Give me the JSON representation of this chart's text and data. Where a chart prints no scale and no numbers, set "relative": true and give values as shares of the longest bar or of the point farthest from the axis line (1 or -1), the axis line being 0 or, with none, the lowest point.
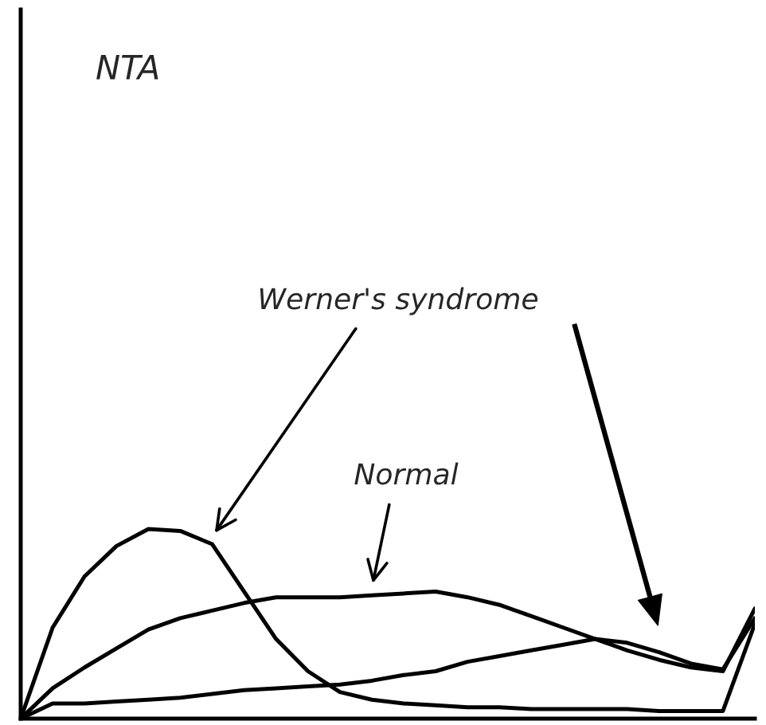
{
  "chart_data": {
    "type": "line",
    "title": "NTA",
    "relative": true,
    "grid": false,
    "legend": false,
    "categories": [
      null,
      null,
      null,
      null,
      null,
      null,
      null,
      null,
      null,
      null,
      null,
      null,
      null,
      null,
      null,
      null,
      null,
      null,
      null,
      null,
      null,
      null,
      null,
      null
    ],
    "series": [
      {
        "name": "Werner's syndrome",
        "color": "#000000",
        "values": [
          0,
          0.48,
          0.75,
          0.91,
          1,
          0.99,
          0.92,
          0.67,
          0.42,
          0.25,
          0.14,
          0.1,
          0.08,
          0.07,
          0.06,
          0.06,
          0.05,
          0.05,
          0.05,
          0.05,
          0.04,
          0.04,
          0.04,
          0.5
        ]
      },
      {
        "name": "Normal",
        "color": "#000000",
        "values": [
          0,
          0.16,
          0.27,
          0.37,
          0.47,
          0.53,
          0.57,
          0.61,
          0.64,
          0.64,
          0.64,
          0.65,
          0.66,
          0.67,
          0.64,
          0.6,
          0.54,
          0.48,
          0.42,
          0.36,
          0.31,
          0.27,
          0.25,
          0.58
        ]
      },
      {
        "color": "#000000",
        "values": [
          0,
          0.08,
          0.08,
          0.09,
          0.1,
          0.11,
          0.13,
          0.15,
          0.16,
          0.17,
          0.18,
          0.2,
          0.23,
          0.25,
          0.3,
          0.33,
          0.36,
          0.39,
          0.42,
          0.4,
          0.35,
          0.29,
          0.26,
          0.53
        ]
      }
    ]
  }
}
